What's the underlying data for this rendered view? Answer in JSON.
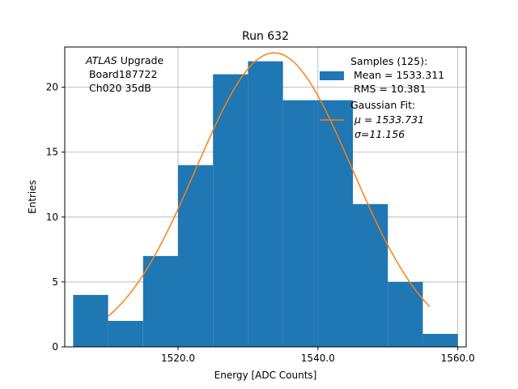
{
  "chart_data": {
    "type": "bar",
    "title": "Run 632",
    "xlabel": "Energy [ADC Counts]",
    "ylabel": "Entries",
    "xlim": [
      1503.8,
      1561.2
    ],
    "ylim": [
      0,
      23.1
    ],
    "grid": true,
    "x_ticks": [
      1520,
      1540,
      1560
    ],
    "x_tick_labels": [
      "1520.0",
      "1540.0",
      "1560.0"
    ],
    "y_ticks": [
      0,
      5,
      10,
      15,
      20
    ],
    "y_tick_labels": [
      "0",
      "5",
      "10",
      "15",
      "20"
    ],
    "bin_edges": [
      1505,
      1510,
      1515,
      1520,
      1525,
      1530,
      1535,
      1540,
      1545,
      1550,
      1555,
      1560
    ],
    "counts": [
      4,
      2,
      7,
      14,
      21,
      22,
      19,
      19,
      11,
      5,
      1
    ],
    "fit": {
      "mu": 1533.731,
      "sigma": 11.156,
      "amplitude": 22.65,
      "x_range": [
        1510,
        1556
      ]
    },
    "annotation": {
      "italic": "ATLAS",
      "rest": " Upgrade",
      "line2": " Board187722",
      "line3": " Ch020 35dB"
    },
    "legend": {
      "position": "top-right",
      "hist_lines": [
        "Samples (125):",
        " Mean = 1533.311",
        " RMS = 10.381"
      ],
      "fit_lines": [
        "Gaussian Fit:",
        "μ = 1533.731",
        "σ=11.156"
      ]
    },
    "colors": {
      "bar": "#1f77b4",
      "fit": "#ff7f0e",
      "grid": "#b0b0b0"
    }
  }
}
